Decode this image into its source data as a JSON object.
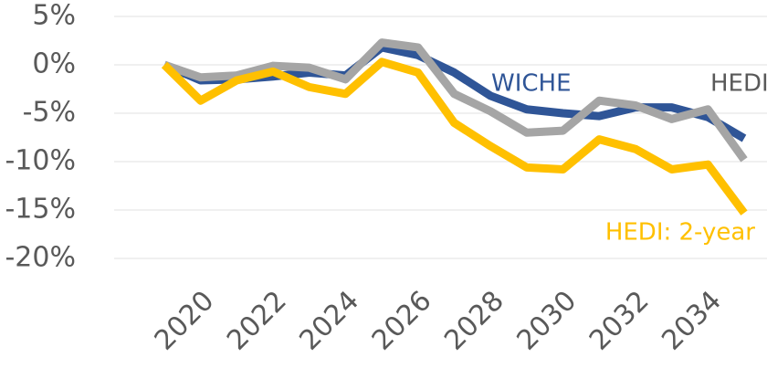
{
  "chart_data": {
    "type": "line",
    "x": [
      2019,
      2020,
      2021,
      2022,
      2023,
      2024,
      2025,
      2026,
      2027,
      2028,
      2029,
      2030,
      2031,
      2032,
      2033,
      2034,
      2035
    ],
    "series": [
      {
        "name": "WICHE",
        "color": "#2f5597",
        "values": [
          0,
          -1.6,
          -1.5,
          -1.2,
          -0.8,
          -1.1,
          1.8,
          1.0,
          -0.8,
          -3.2,
          -4.6,
          -5.0,
          -5.3,
          -4.4,
          -4.4,
          -5.4,
          -7.6
        ]
      },
      {
        "name": "HEDI",
        "color": "#a5a5a5",
        "values": [
          0,
          -1.3,
          -1.1,
          -0.1,
          -0.3,
          -1.5,
          2.3,
          1.8,
          -3.0,
          -4.8,
          -7.0,
          -6.8,
          -3.7,
          -4.2,
          -5.6,
          -4.6,
          -9.8
        ]
      },
      {
        "name": "HEDI: 2-year",
        "color": "#ffc000",
        "values": [
          0,
          -3.7,
          -1.6,
          -0.7,
          -2.3,
          -3.0,
          0.3,
          -0.8,
          -6.0,
          -8.4,
          -10.6,
          -10.8,
          -7.7,
          -8.7,
          -10.8,
          -10.3,
          -15.3
        ]
      }
    ],
    "xlim": [
      2019,
      2035
    ],
    "xticks": [
      2020,
      2022,
      2024,
      2026,
      2028,
      2030,
      2032,
      2034
    ],
    "ylim": [
      -20,
      5
    ],
    "yticks": [
      {
        "value": 5,
        "label": "5%"
      },
      {
        "value": 0,
        "label": "0%"
      },
      {
        "value": -5,
        "label": "-5%"
      },
      {
        "value": -10,
        "label": "-10%"
      },
      {
        "value": -15,
        "label": "-15%"
      },
      {
        "value": -20,
        "label": "-20%"
      }
    ],
    "grid": true
  }
}
